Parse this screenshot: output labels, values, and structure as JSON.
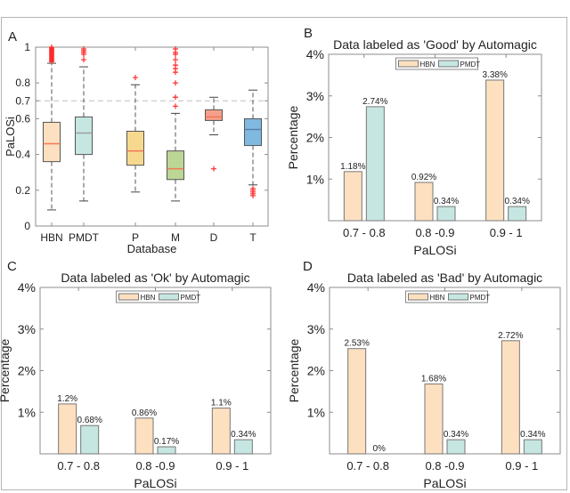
{
  "figure": {
    "panel_letters": [
      "A",
      "B",
      "C",
      "D"
    ]
  },
  "colors": {
    "HBN": "#fde0c0",
    "PMDT": "#c6e6e1",
    "P": "#f6d98f",
    "M": "#bcd696",
    "D": "#f4a08b",
    "T": "#7fb9e0",
    "outlier": "#ff2a2a",
    "median_red": "#f0785a",
    "median_gray": "#a0a0a0",
    "median_blue": "#5a7fb0",
    "axis": "#8c8c8c",
    "threshold_line": "#c8c8c8"
  },
  "chart_data": [
    {
      "id": "A",
      "type": "box",
      "title": "",
      "xlabel": "Database",
      "ylabel": "PaLOSi",
      "ylim": [
        0,
        1
      ],
      "yticks": [
        0,
        0.2,
        0.4,
        0.6,
        0.7,
        0.8,
        1
      ],
      "ytick_labels": [
        "0",
        "0.2",
        "0.4",
        "0.6",
        "0.7",
        "0.8",
        "1"
      ],
      "threshold": 0.7,
      "categories": [
        "HBN",
        "PMDT",
        "P",
        "M",
        "D",
        "T"
      ],
      "boxes": [
        {
          "name": "HBN",
          "whisker_low": 0.09,
          "q1": 0.36,
          "median": 0.46,
          "q3": 0.58,
          "whisker_high": 0.91,
          "outliers": [
            0.92,
            0.93,
            0.94,
            0.95,
            0.96,
            0.97,
            0.98,
            0.99,
            1.0
          ],
          "median_color": "median_red"
        },
        {
          "name": "PMDT",
          "whisker_low": 0.14,
          "q1": 0.4,
          "median": 0.52,
          "q3": 0.61,
          "whisker_high": 0.89,
          "outliers": [
            0.93,
            0.96,
            0.97,
            0.98,
            0.99
          ],
          "median_color": "median_gray"
        },
        {
          "name": "P",
          "whisker_low": 0.19,
          "q1": 0.34,
          "median": 0.42,
          "q3": 0.53,
          "whisker_high": 0.79,
          "outliers": [
            0.83
          ],
          "median_color": "median_red"
        },
        {
          "name": "M",
          "whisker_low": 0.14,
          "q1": 0.26,
          "median": 0.32,
          "q3": 0.42,
          "whisker_high": 0.63,
          "outliers": [
            0.67,
            0.72,
            0.8,
            0.86,
            0.88,
            0.9,
            0.93,
            0.96,
            0.97,
            0.99
          ],
          "median_color": "median_red"
        },
        {
          "name": "D",
          "whisker_low": 0.51,
          "q1": 0.59,
          "median": 0.61,
          "q3": 0.65,
          "whisker_high": 0.72,
          "outliers": [
            0.32
          ],
          "median_color": "median_red"
        },
        {
          "name": "T",
          "whisker_low": 0.23,
          "q1": 0.45,
          "median": 0.54,
          "q3": 0.6,
          "whisker_high": 0.76,
          "outliers": [
            0.17,
            0.18,
            0.19,
            0.2,
            0.21
          ],
          "median_color": "median_blue"
        }
      ]
    },
    {
      "id": "B",
      "type": "bar",
      "title": "Data labeled as 'Good' by Automagic",
      "xlabel": "PaLOSi",
      "ylabel": "Percentage",
      "ylim": [
        0,
        4
      ],
      "yticks": [
        1,
        2,
        3,
        4
      ],
      "ytick_labels": [
        "1%",
        "2%",
        "3%",
        "4%"
      ],
      "categories": [
        "0.7 - 0.8",
        "0.8 -0.9",
        "0.9 - 1"
      ],
      "legend": {
        "entries": [
          "HBN",
          "PMDT"
        ],
        "placement": "top-center"
      },
      "series": [
        {
          "name": "HBN",
          "values": [
            1.18,
            0.92,
            3.38
          ],
          "labels": [
            "1.18%",
            "0.92%",
            "3.38%"
          ]
        },
        {
          "name": "PMDT",
          "values": [
            2.74,
            0.34,
            0.34
          ],
          "labels": [
            "2.74%",
            "0.34%",
            "0.34%"
          ]
        }
      ]
    },
    {
      "id": "C",
      "type": "bar",
      "title": "Data labeled as 'Ok' by Automagic",
      "xlabel": "PaLOSi",
      "ylabel": "Percentage",
      "ylim": [
        0,
        4
      ],
      "yticks": [
        1,
        2,
        3,
        4
      ],
      "ytick_labels": [
        "1%",
        "2%",
        "3%",
        "4%"
      ],
      "categories": [
        "0.7 - 0.8",
        "0.8 -0.9",
        "0.9 - 1"
      ],
      "legend": {
        "entries": [
          "HBN",
          "PMDT"
        ],
        "placement": "top-center"
      },
      "series": [
        {
          "name": "HBN",
          "values": [
            1.2,
            0.86,
            1.1
          ],
          "labels": [
            "1.2%",
            "0.86%",
            "1.1%"
          ]
        },
        {
          "name": "PMDT",
          "values": [
            0.68,
            0.17,
            0.34
          ],
          "labels": [
            "0.68%",
            "0.17%",
            "0.34%"
          ]
        }
      ]
    },
    {
      "id": "D",
      "type": "bar",
      "title": "Data labeled as 'Bad' by Automagic",
      "xlabel": "PaLOSi",
      "ylabel": "Percentage",
      "ylim": [
        0,
        4
      ],
      "yticks": [
        1,
        2,
        3,
        4
      ],
      "ytick_labels": [
        "1%",
        "2%",
        "3%",
        "4%"
      ],
      "categories": [
        "0.7 - 0.8",
        "0.8 -0.9",
        "0.9 - 1"
      ],
      "legend": {
        "entries": [
          "HBN",
          "PMDT"
        ],
        "placement": "top-center"
      },
      "series": [
        {
          "name": "HBN",
          "values": [
            2.53,
            1.68,
            2.72
          ],
          "labels": [
            "2.53%",
            "1.68%",
            "2.72%"
          ]
        },
        {
          "name": "PMDT",
          "values": [
            0,
            0.34,
            0.34
          ],
          "labels": [
            "0%",
            "0.34%",
            "0.34%"
          ]
        }
      ]
    }
  ]
}
